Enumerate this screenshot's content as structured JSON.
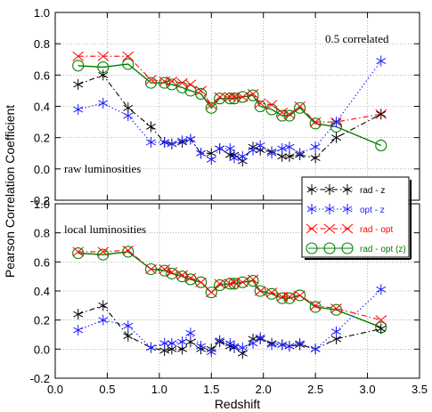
{
  "chart_data": {
    "type": "line",
    "xlabel": "Redshift",
    "ylabel": "Pearson Correlation Coefficient",
    "xlim": [
      0.0,
      3.5
    ],
    "ylim": [
      -0.2,
      1.0
    ],
    "x_ticks": [
      "0.0",
      "0.5",
      "1.0",
      "1.5",
      "2.0",
      "2.5",
      "3.0",
      "3.5"
    ],
    "y_ticks": [
      "-0.2",
      "0.0",
      "0.2",
      "0.4",
      "0.6",
      "0.8",
      "1.0"
    ],
    "legend": {
      "placement": "right",
      "entries": [
        {
          "label": "rad - z",
          "color": "#000000",
          "marker": "star",
          "dash": "dashdot"
        },
        {
          "label": "opt - z",
          "color": "#1a1aff",
          "marker": "star",
          "dash": "dotted"
        },
        {
          "label": "rad - opt",
          "color": "#ff0000",
          "marker": "cross",
          "dash": "dashdot"
        },
        {
          "label": "rad - opt (z)",
          "color": "#008000",
          "marker": "circle",
          "dash": "solid"
        }
      ]
    },
    "x": [
      0.22,
      0.46,
      0.7,
      0.92,
      1.05,
      1.12,
      1.22,
      1.3,
      1.4,
      1.5,
      1.58,
      1.68,
      1.72,
      1.8,
      1.9,
      1.97,
      2.08,
      2.18,
      2.25,
      2.35,
      2.5,
      2.7,
      3.13
    ],
    "panels": [
      {
        "annotations": [
          "0.5 correlated",
          "raw luminosities"
        ],
        "series": [
          {
            "name": "rad - z",
            "values": [
              0.54,
              0.6,
              0.39,
              0.27,
              0.17,
              0.16,
              0.17,
              0.19,
              0.1,
              0.1,
              0.13,
              0.09,
              0.09,
              0.05,
              0.14,
              0.12,
              0.11,
              0.08,
              0.08,
              0.09,
              0.07,
              0.2,
              0.35
            ]
          },
          {
            "name": "opt - z",
            "values": [
              0.38,
              0.42,
              0.34,
              0.17,
              0.17,
              0.16,
              0.18,
              0.19,
              0.1,
              0.06,
              0.13,
              0.13,
              0.07,
              0.08,
              0.12,
              0.15,
              0.1,
              0.13,
              0.14,
              0.1,
              0.14,
              0.3,
              0.69
            ]
          },
          {
            "name": "rad - opt",
            "values": [
              0.72,
              0.72,
              0.72,
              0.57,
              0.56,
              0.56,
              0.55,
              0.54,
              0.5,
              0.41,
              0.46,
              0.46,
              0.46,
              0.46,
              0.48,
              0.42,
              0.41,
              0.36,
              0.35,
              0.4,
              0.3,
              0.3,
              0.35
            ]
          },
          {
            "name": "rad - opt (z)",
            "values": [
              0.66,
              0.65,
              0.67,
              0.55,
              0.55,
              0.54,
              0.52,
              0.5,
              0.48,
              0.39,
              0.45,
              0.45,
              0.45,
              0.46,
              0.47,
              0.4,
              0.38,
              0.34,
              0.34,
              0.39,
              0.29,
              0.27,
              0.15
            ]
          }
        ]
      },
      {
        "annotations": [
          "local luminosities"
        ],
        "series": [
          {
            "name": "rad - z",
            "values": [
              0.24,
              0.3,
              0.09,
              0.01,
              -0.01,
              0.0,
              0.0,
              0.05,
              0.0,
              0.0,
              0.05,
              0.02,
              0.01,
              -0.03,
              0.07,
              0.07,
              0.04,
              0.03,
              0.02,
              0.03,
              0.0,
              0.07,
              0.14
            ]
          },
          {
            "name": "opt - z",
            "values": [
              0.13,
              0.2,
              0.16,
              0.01,
              0.04,
              0.04,
              0.05,
              0.11,
              0.02,
              -0.02,
              0.06,
              0.04,
              0.02,
              0.01,
              0.04,
              0.08,
              0.03,
              0.03,
              0.02,
              0.04,
              0.0,
              0.12,
              0.41
            ]
          },
          {
            "name": "rad - opt",
            "values": [
              0.67,
              0.67,
              0.68,
              0.55,
              0.55,
              0.53,
              0.51,
              0.49,
              0.46,
              0.39,
              0.45,
              0.45,
              0.46,
              0.46,
              0.48,
              0.4,
              0.39,
              0.36,
              0.36,
              0.37,
              0.3,
              0.28,
              0.2
            ]
          },
          {
            "name": "rad - opt (z)",
            "values": [
              0.66,
              0.65,
              0.67,
              0.55,
              0.54,
              0.52,
              0.5,
              0.48,
              0.46,
              0.39,
              0.44,
              0.45,
              0.45,
              0.46,
              0.47,
              0.4,
              0.38,
              0.35,
              0.35,
              0.37,
              0.29,
              0.27,
              0.15
            ]
          }
        ]
      }
    ]
  }
}
